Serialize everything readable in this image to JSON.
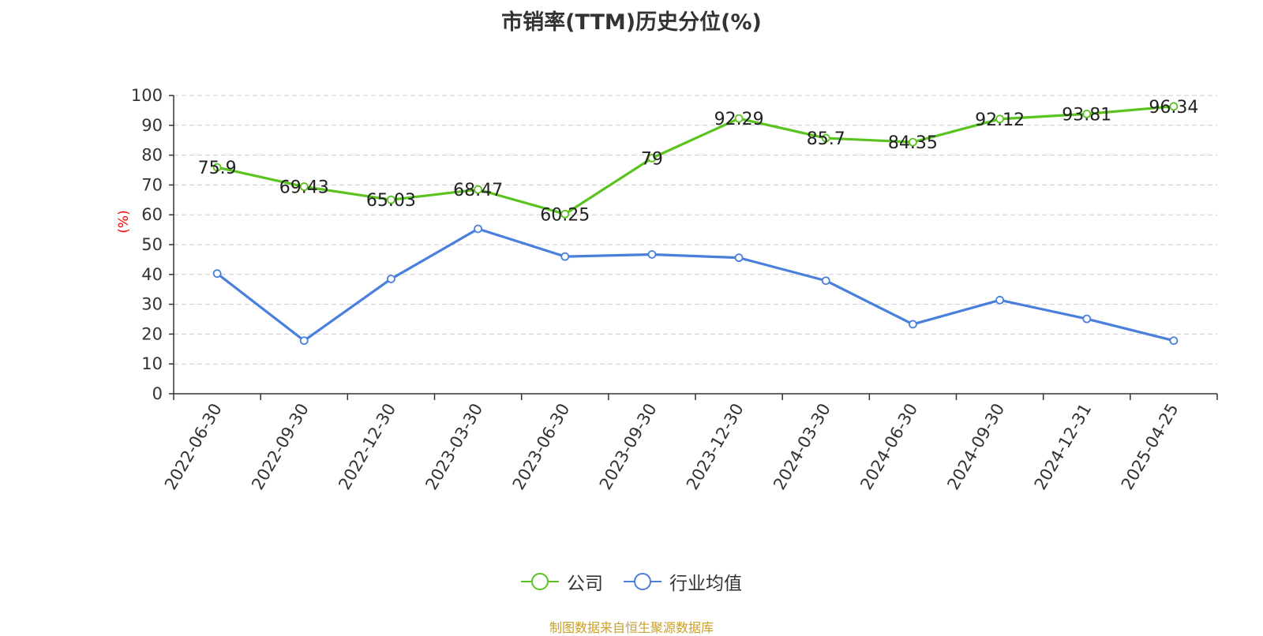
{
  "title": "市销率(TTM)历史分位(%)",
  "source": "制图数据来自恒生聚源数据库",
  "colors": {
    "company": "#5bc31f",
    "industry": "#4a7fdc",
    "ylabel": "#ff0000"
  },
  "chart_data": {
    "type": "line",
    "title": "市销率(TTM)历史分位(%)",
    "ylabel": "(%)",
    "xlabel": "",
    "ylim": [
      0,
      100
    ],
    "yticks": [
      0,
      10,
      20,
      30,
      40,
      50,
      60,
      70,
      80,
      90,
      100
    ],
    "grid": true,
    "legend_position": "bottom",
    "categories": [
      "2022-06-30",
      "2022-09-30",
      "2022-12-30",
      "2023-03-30",
      "2023-06-30",
      "2023-09-30",
      "2023-12-30",
      "2024-03-30",
      "2024-06-30",
      "2024-09-30",
      "2024-12-31",
      "2025-04-25"
    ],
    "series": [
      {
        "name": "公司",
        "values": [
          75.9,
          69.43,
          65.03,
          68.47,
          60.25,
          79,
          92.29,
          85.7,
          84.35,
          92.12,
          93.81,
          96.34
        ],
        "labels": true
      },
      {
        "name": "行业均值",
        "values": [
          40.3,
          17.8,
          38.5,
          55.3,
          46,
          46.7,
          45.6,
          37.9,
          23.3,
          31.4,
          25.1,
          17.8
        ],
        "labels": false
      }
    ]
  }
}
